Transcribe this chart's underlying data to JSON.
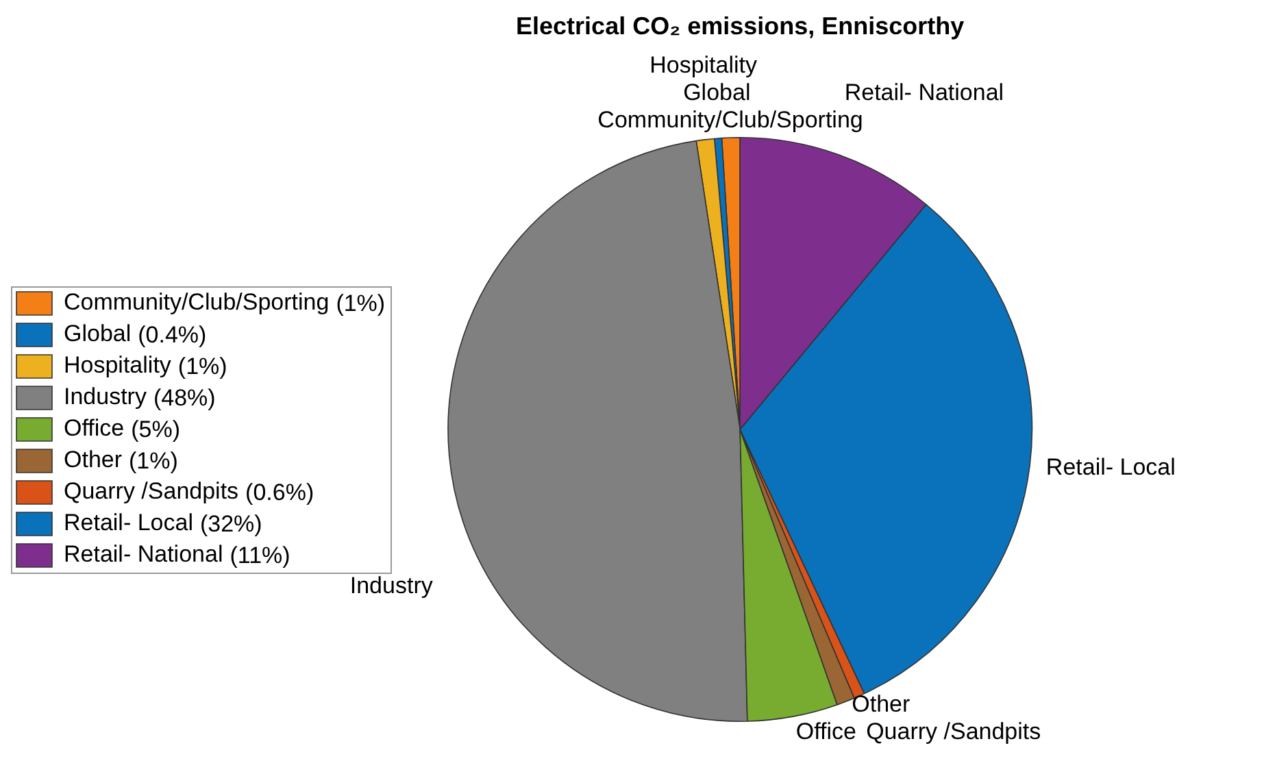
{
  "chart_data": {
    "type": "pie",
    "title": "Electrical CO₂ emissions, Enniscorthy",
    "categories": [
      "Community/Club/Sporting",
      "Global",
      "Hospitality",
      "Industry",
      "Office",
      "Other",
      "Quarry /Sandpits",
      "Retail- Local",
      "Retail- National"
    ],
    "values": [
      1,
      0.4,
      1,
      48,
      5,
      1,
      0.6,
      32,
      11
    ],
    "value_labels": [
      "(1%)",
      "(0.4%)",
      "(1%)",
      "(48%)",
      "(5%)",
      "(1%)",
      "(0.6%)",
      "(32%)",
      "(11%)"
    ],
    "colors": [
      "#f57f17",
      "#0a72ba",
      "#edb120",
      "#808080",
      "#77ac30",
      "#9a6634",
      "#d95319",
      "#0a72ba",
      "#7e2f8e"
    ],
    "legend": "left"
  }
}
